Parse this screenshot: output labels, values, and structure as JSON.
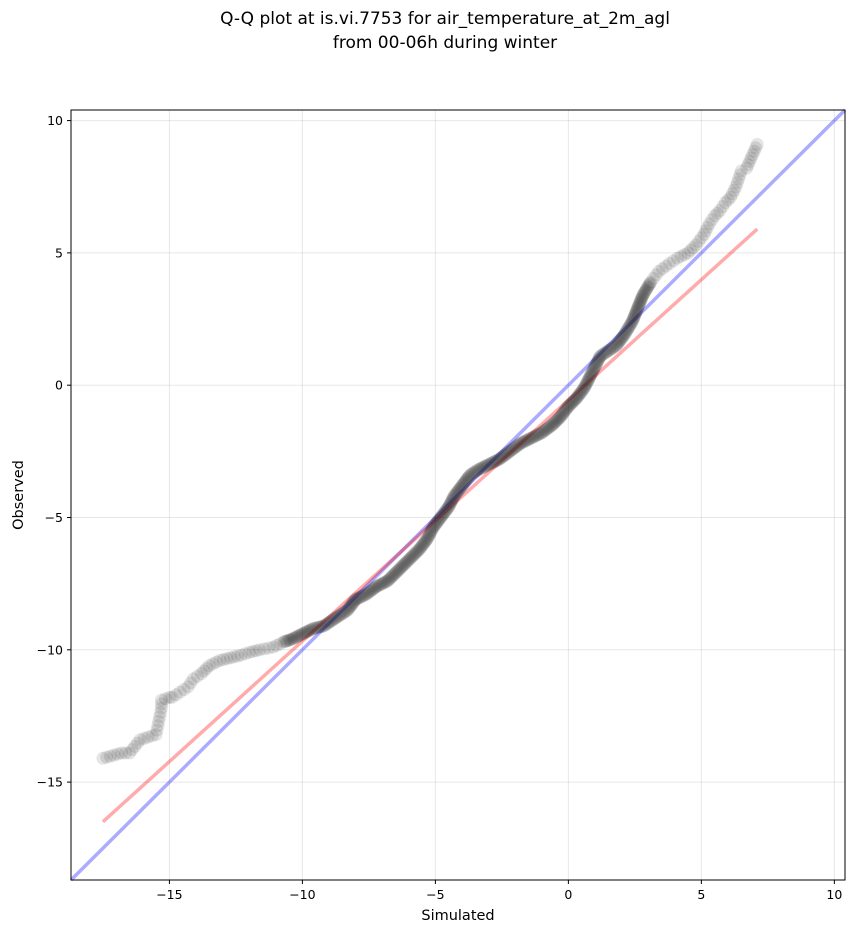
{
  "chart_data": {
    "type": "scatter",
    "title_line1": "Q-Q plot at is.vi.7753 for air_temperature_at_2m_agl",
    "title_line2": "from 00-06h during winter",
    "xlabel": "Simulated",
    "ylabel": "Observed",
    "xlim": [
      -18.7,
      10.4
    ],
    "ylim": [
      -18.7,
      10.4
    ],
    "xticks": [
      -15,
      -10,
      -5,
      0,
      5,
      10
    ],
    "yticks": [
      -15,
      -10,
      -5,
      0,
      5,
      10
    ],
    "xtick_labels": [
      "−15",
      "−10",
      "−5",
      "0",
      "5",
      "10"
    ],
    "ytick_labels": [
      "−15",
      "−10",
      "−5",
      "0",
      "5",
      "10"
    ],
    "grid": true,
    "identity_line": {
      "color": "#0000ff",
      "alpha": 0.33,
      "from": [
        -18.7,
        -18.7
      ],
      "to": [
        10.4,
        10.4
      ]
    },
    "fit_line": {
      "color": "#ff0000",
      "alpha": 0.33,
      "from": [
        -17.5,
        -16.5
      ],
      "to": [
        7.1,
        5.9
      ]
    },
    "series": [
      {
        "marker_color": "#000000",
        "points": [
          [
            -17.5,
            -14.1
          ],
          [
            -16.8,
            -13.9
          ],
          [
            -16.5,
            -13.9
          ],
          [
            -16.1,
            -13.4
          ],
          [
            -15.5,
            -13.2
          ],
          [
            -15.4,
            -12.7
          ],
          [
            -15.3,
            -12.2
          ],
          [
            -15.3,
            -11.9
          ],
          [
            -15.0,
            -11.8
          ],
          [
            -14.9,
            -11.8
          ],
          [
            -14.6,
            -11.6
          ],
          [
            -14.3,
            -11.4
          ],
          [
            -14.1,
            -11.1
          ],
          [
            -13.8,
            -10.9
          ],
          [
            -13.5,
            -10.6
          ],
          [
            -13.1,
            -10.4
          ],
          [
            -12.7,
            -10.3
          ],
          [
            -12.3,
            -10.2
          ],
          [
            -12.0,
            -10.1
          ],
          [
            -11.6,
            -10.0
          ],
          [
            -11.1,
            -9.9
          ],
          [
            -10.7,
            -9.7
          ],
          [
            -10.4,
            -9.6
          ],
          [
            -10.0,
            -9.4
          ],
          [
            -9.6,
            -9.2
          ],
          [
            -9.2,
            -9.1
          ],
          [
            -8.9,
            -8.9
          ],
          [
            -8.6,
            -8.7
          ],
          [
            -8.3,
            -8.5
          ],
          [
            -8.0,
            -8.1
          ],
          [
            -7.6,
            -7.9
          ],
          [
            -7.2,
            -7.6
          ],
          [
            -6.8,
            -7.4
          ],
          [
            -6.4,
            -7.0
          ],
          [
            -6.0,
            -6.6
          ],
          [
            -5.6,
            -6.2
          ],
          [
            -5.3,
            -5.8
          ],
          [
            -5.1,
            -5.4
          ],
          [
            -4.8,
            -5.0
          ],
          [
            -4.5,
            -4.6
          ],
          [
            -4.3,
            -4.2
          ],
          [
            -4.0,
            -3.8
          ],
          [
            -3.7,
            -3.4
          ],
          [
            -3.4,
            -3.2
          ],
          [
            -3.0,
            -3.0
          ],
          [
            -2.6,
            -2.8
          ],
          [
            -2.2,
            -2.5
          ],
          [
            -1.8,
            -2.2
          ],
          [
            -1.4,
            -2.0
          ],
          [
            -1.0,
            -1.8
          ],
          [
            -0.6,
            -1.5
          ],
          [
            -0.3,
            -1.2
          ],
          [
            0.0,
            -0.8
          ],
          [
            0.3,
            -0.5
          ],
          [
            0.6,
            -0.1
          ],
          [
            0.9,
            0.5
          ],
          [
            1.2,
            1.1
          ],
          [
            1.5,
            1.3
          ],
          [
            1.8,
            1.5
          ],
          [
            2.1,
            1.9
          ],
          [
            2.4,
            2.4
          ],
          [
            2.6,
            2.9
          ],
          [
            2.8,
            3.4
          ],
          [
            3.1,
            3.9
          ],
          [
            3.4,
            4.3
          ],
          [
            3.8,
            4.6
          ],
          [
            4.1,
            4.8
          ],
          [
            4.5,
            5.0
          ],
          [
            4.8,
            5.3
          ],
          [
            5.1,
            5.7
          ],
          [
            5.3,
            6.1
          ],
          [
            5.5,
            6.4
          ],
          [
            5.7,
            6.6
          ],
          [
            5.9,
            6.9
          ],
          [
            6.1,
            7.1
          ],
          [
            6.3,
            7.5
          ],
          [
            6.5,
            8.1
          ],
          [
            6.7,
            8.2
          ],
          [
            7.1,
            9.1
          ]
        ]
      }
    ]
  }
}
